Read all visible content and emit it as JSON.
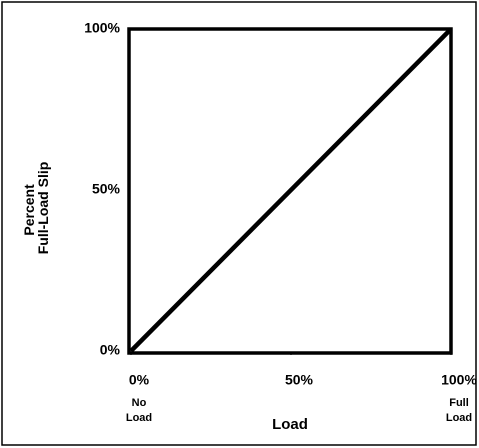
{
  "chart_data": {
    "type": "line",
    "xlabel": "Load",
    "ylabel": [
      "Percent",
      "Full-Load Slip"
    ],
    "x": [
      0,
      100
    ],
    "series": [
      {
        "color": "#000000",
        "values": [
          0,
          100
        ]
      }
    ],
    "xlim": [
      0,
      100
    ],
    "ylim": [
      0,
      100
    ],
    "xticks": [
      {
        "value": 0,
        "label": "0%"
      },
      {
        "value": 50,
        "label": "50%"
      },
      {
        "value": 100,
        "label": "100%"
      }
    ],
    "yticks": [
      {
        "value": 0,
        "label": "0%"
      },
      {
        "value": 50,
        "label": "50%"
      },
      {
        "value": 100,
        "label": "100%"
      }
    ],
    "annotations": [
      {
        "x": 0,
        "lines": [
          "No",
          "Load"
        ]
      },
      {
        "x": 100,
        "lines": [
          "Full",
          "Load"
        ]
      }
    ],
    "grid": false
  }
}
